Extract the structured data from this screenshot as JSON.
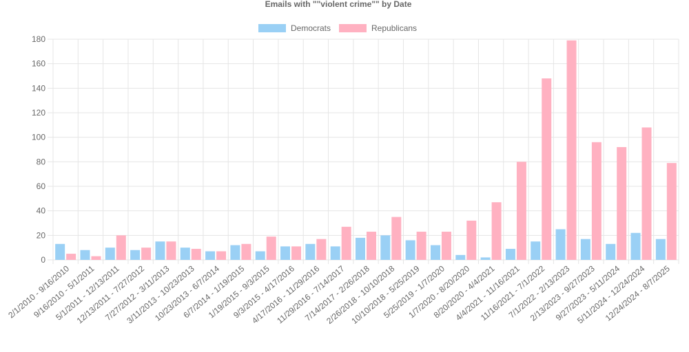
{
  "chart_data": {
    "type": "bar",
    "title": "Emails with \"\"violent crime\"\" by Date",
    "categories": [
      "2/1/2010 - 9/16/2010",
      "9/16/2010 - 5/1/2011",
      "5/1/2011 - 12/13/2011",
      "12/13/2011 - 7/27/2012",
      "7/27/2012 - 3/11/2013",
      "3/11/2013 - 10/23/2013",
      "10/23/2013 - 6/7/2014",
      "6/7/2014 - 1/19/2015",
      "1/19/2015 - 9/3/2015",
      "9/3/2015 - 4/17/2016",
      "4/17/2016 - 11/29/2016",
      "11/29/2016 - 7/14/2017",
      "7/14/2017 - 2/26/2018",
      "2/26/2018 - 10/10/2018",
      "10/10/2018 - 5/25/2019",
      "5/25/2019 - 1/7/2020",
      "1/7/2020 - 8/20/2020",
      "8/20/2020 - 4/4/2021",
      "4/4/2021 - 11/16/2021",
      "11/16/2021 - 7/1/2022",
      "7/1/2022 - 2/13/2023",
      "2/13/2023 - 9/27/2023",
      "9/27/2023 - 5/11/2024",
      "5/11/2024 - 12/24/2024",
      "12/24/2024 - 8/7/2025"
    ],
    "series": [
      {
        "name": "Democrats",
        "color": "#9ad0f5",
        "values": [
          13,
          8,
          10,
          8,
          15,
          10,
          7,
          12,
          7,
          11,
          13,
          11,
          18,
          20,
          16,
          12,
          4,
          2,
          9,
          15,
          25,
          17,
          13,
          22,
          17
        ]
      },
      {
        "name": "Republicans",
        "color": "#ffb1c1",
        "values": [
          5,
          3,
          20,
          10,
          15,
          9,
          7,
          13,
          19,
          11,
          17,
          27,
          23,
          35,
          23,
          23,
          32,
          47,
          80,
          148,
          179,
          96,
          92,
          108,
          79
        ]
      }
    ],
    "yticks": [
      "0",
      "20",
      "40",
      "60",
      "80",
      "100",
      "120",
      "140",
      "160",
      "180"
    ],
    "ylim": [
      0,
      180
    ],
    "grid": true,
    "legend_position": "top"
  }
}
